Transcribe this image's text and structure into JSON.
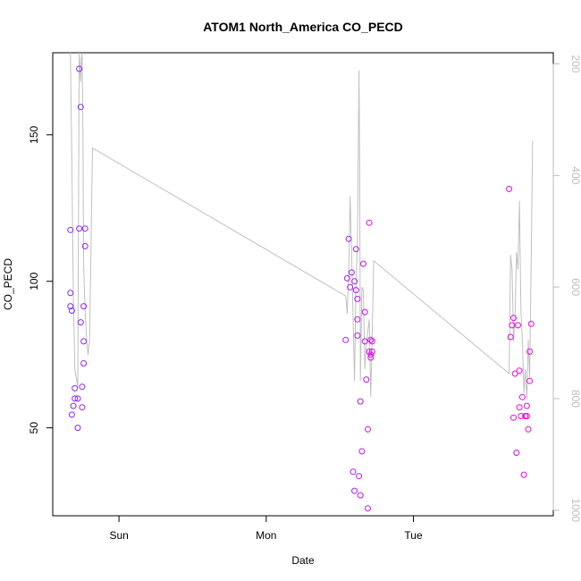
{
  "chart_data": {
    "type": "scatter",
    "title": "ATOM1 North_America CO_PECD",
    "xlabel": "Date",
    "ylabel": "CO_PECD",
    "x_unit": "days since Sat 00:00",
    "xlim": [
      0.55,
      3.95
    ],
    "ylim": [
      20,
      178
    ],
    "x_ticks": [
      {
        "value": 1,
        "label": "Sun"
      },
      {
        "value": 2,
        "label": "Mon"
      },
      {
        "value": 3,
        "label": "Tue"
      }
    ],
    "y_ticks": [
      50,
      100,
      150
    ],
    "right_axis": {
      "ticks": [
        200,
        400,
        600,
        800,
        1000
      ],
      "lim": [
        1010,
        180
      ],
      "color": "#bdbdbd",
      "reversed": true
    },
    "grid": false,
    "legend": "none",
    "colors": {
      "start": "#7b2cff",
      "end": "#ff00dd",
      "line": "#c0c0c0"
    },
    "series": [
      {
        "kind": "points",
        "x": [
          0.67,
          0.67,
          0.67,
          0.68,
          0.68,
          0.69,
          0.7,
          0.7,
          0.72,
          0.72,
          0.73,
          0.73,
          0.74,
          0.74,
          0.75,
          0.75,
          0.76,
          0.76,
          0.76,
          0.77,
          0.77,
          2.54,
          2.55,
          2.56,
          2.57,
          2.58,
          2.59,
          2.6,
          2.6,
          2.61,
          2.61,
          2.62,
          2.62,
          2.62,
          2.63,
          2.64,
          2.64,
          2.65,
          2.66,
          2.67,
          2.67,
          2.68,
          2.69,
          2.69,
          2.7,
          2.7,
          2.71,
          2.71,
          2.71,
          2.72,
          2.72,
          3.65,
          3.66,
          3.67,
          3.68,
          3.68,
          3.69,
          3.7,
          3.71,
          3.72,
          3.72,
          3.73,
          3.74,
          3.75,
          3.76,
          3.77,
          3.77,
          3.78,
          3.79,
          3.79,
          3.8
        ],
        "y": [
          117.5,
          96,
          91.5,
          90,
          54.5,
          57.5,
          63.5,
          60,
          60,
          50,
          172.5,
          118,
          86,
          159.5,
          64,
          57,
          79.5,
          91.5,
          72,
          112,
          118,
          80,
          101,
          114.5,
          98,
          103,
          35,
          28.5,
          100,
          97,
          111,
          94,
          87,
          81.5,
          33.5,
          27,
          59,
          42,
          106,
          79.5,
          89.5,
          66.5,
          49.5,
          22.5,
          120,
          76,
          80,
          75,
          74,
          76,
          79.5,
          131.5,
          81,
          85,
          87.5,
          53.5,
          68.5,
          41.5,
          85,
          57,
          69.5,
          54,
          60.5,
          34,
          54,
          57.5,
          54,
          49.5,
          66,
          76,
          85.5
        ]
      },
      {
        "kind": "line",
        "x": [
          0.67,
          0.68,
          0.69,
          0.7,
          0.72,
          0.73,
          0.74,
          0.745,
          0.75,
          0.755,
          0.76,
          0.77,
          0.78,
          0.79,
          0.8,
          0.82,
          2.54,
          2.55,
          2.56,
          2.57,
          2.58,
          2.59,
          2.6,
          2.61,
          2.62,
          2.63,
          2.635,
          2.64,
          2.65,
          2.66,
          2.67,
          2.68,
          2.69,
          2.7,
          2.71,
          2.72,
          2.73,
          3.65,
          3.66,
          3.67,
          3.68,
          3.69,
          3.7,
          3.71,
          3.72,
          3.73,
          3.74,
          3.75,
          3.76,
          3.77,
          3.78,
          3.79,
          3.8,
          3.81
        ],
        "y": [
          178,
          140,
          95,
          70,
          64,
          178,
          168,
          176,
          178,
          150,
          105,
          90,
          80,
          75,
          80,
          145.5,
          95,
          89,
          103,
          129,
          109,
          88,
          66,
          101,
          112,
          172,
          140,
          66,
          98,
          97,
          70,
          78,
          83,
          87,
          60.5,
          82,
          107,
          68.5,
          109,
          104,
          79.5,
          88,
          110,
          104,
          127.5,
          90,
          80,
          62,
          70,
          60,
          80,
          67,
          108,
          148
        ]
      }
    ]
  }
}
